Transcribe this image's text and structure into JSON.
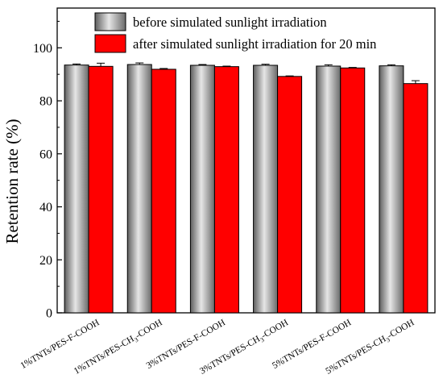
{
  "chart_data": {
    "type": "bar",
    "title": "",
    "xlabel": "",
    "ylabel": "Retention rate (%)",
    "ylim": [
      0,
      115
    ],
    "yticks": [
      0,
      20,
      40,
      60,
      80,
      100
    ],
    "categories": [
      {
        "pre": "1%TNTs/PES-F-COOH",
        "sub": "",
        "post": ""
      },
      {
        "pre": "1%TNTs/PES-CH",
        "sub": "3",
        "post": "-COOH"
      },
      {
        "pre": "3%TNTs/PES-F-COOH",
        "sub": "",
        "post": ""
      },
      {
        "pre": "3%TNTs/PES-CH",
        "sub": "3",
        "post": "-COOH"
      },
      {
        "pre": "5%TNTs/PES-F-COOH",
        "sub": "",
        "post": ""
      },
      {
        "pre": "5%TNTs/PES-CH",
        "sub": "3",
        "post": "-COOH"
      }
    ],
    "series": [
      {
        "name": "before simulated sunlight irradiation",
        "color": "#9a9a9a",
        "values": [
          93.5,
          93.7,
          93.4,
          93.4,
          93.1,
          93.2
        ],
        "errors": [
          0.4,
          0.6,
          0.3,
          0.4,
          0.5,
          0.4
        ]
      },
      {
        "name": "after simulated sunlight irradiation for 20 min",
        "color": "#ff0000",
        "values": [
          93.0,
          91.9,
          92.9,
          89.2,
          92.4,
          86.5
        ],
        "errors": [
          1.2,
          0.3,
          0.2,
          0.2,
          0.2,
          1.1
        ]
      }
    ],
    "legend_position": "top-left",
    "grid": false
  }
}
